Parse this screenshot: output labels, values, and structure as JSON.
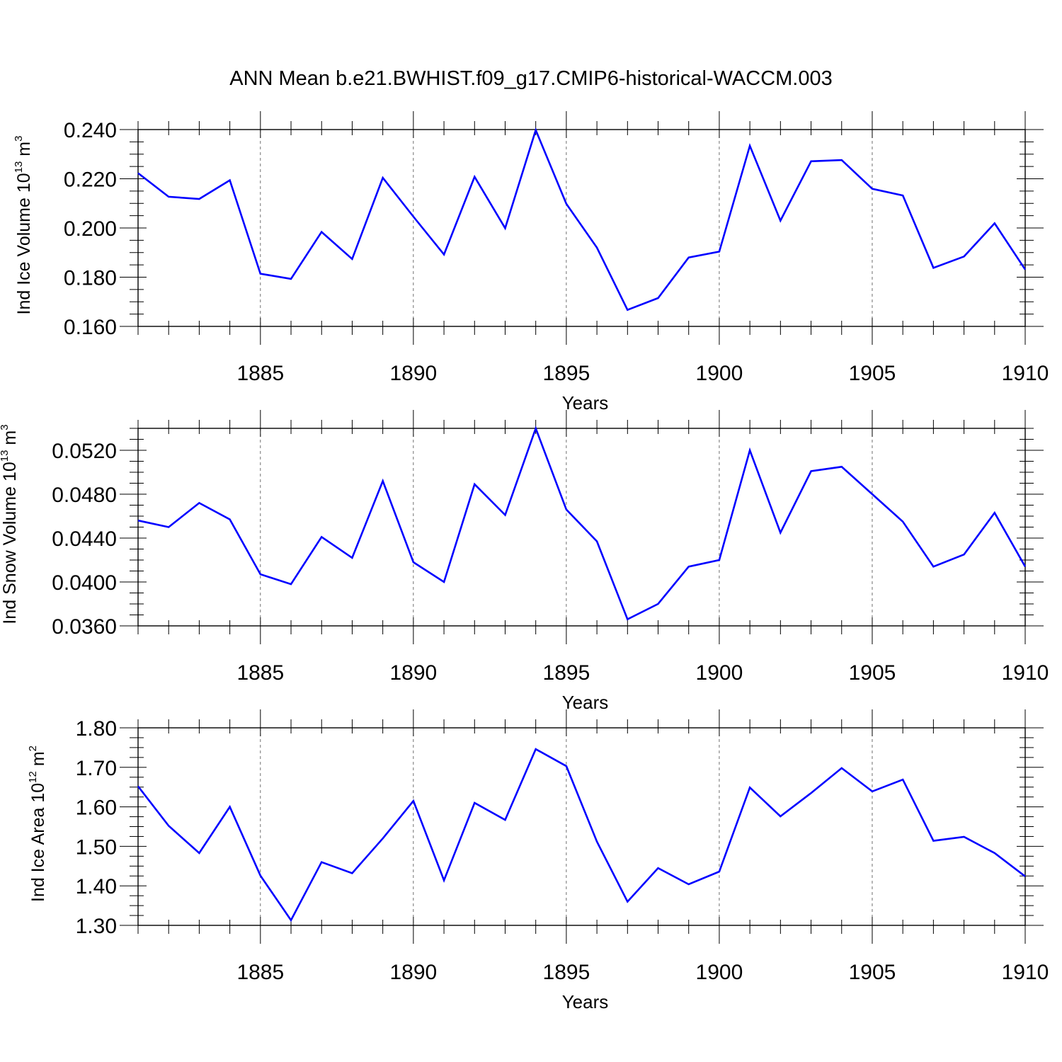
{
  "title": "ANN Mean b.e21.BWHIST.f09_g17.CMIP6-historical-WACCM.003",
  "colors": {
    "line": "#0000ff",
    "axis": "#000000",
    "grid": "#000000"
  },
  "chart_data": [
    {
      "type": "line",
      "ylabel": {
        "text": "Ind Ice Volume 10",
        "sup": "13",
        "unit": " m",
        "unit_sup": "3"
      },
      "xlabel": "Years",
      "xlim": [
        1881,
        1910
      ],
      "ylim": [
        0.16,
        0.24
      ],
      "x_tick_labels": [
        "1885",
        "1890",
        "1895",
        "1900",
        "1905",
        "1910"
      ],
      "y_tick_labels": [
        "0.160",
        "0.180",
        "0.200",
        "0.220",
        "0.240"
      ],
      "grid": "dashed vertical at major x ticks",
      "x": [
        1881,
        1882,
        1883,
        1884,
        1885,
        1886,
        1887,
        1888,
        1889,
        1890,
        1891,
        1892,
        1893,
        1894,
        1895,
        1896,
        1897,
        1898,
        1899,
        1900,
        1901,
        1902,
        1903,
        1904,
        1905,
        1906,
        1907,
        1908,
        1909,
        1910
      ],
      "series": [
        {
          "values": [
            0.2223,
            0.2127,
            0.2118,
            0.2194,
            0.1814,
            0.1793,
            0.1984,
            0.1874,
            0.2204,
            0.2046,
            0.1892,
            0.2208,
            0.1999,
            0.2398,
            0.2098,
            0.192,
            0.1667,
            0.1715,
            0.188,
            0.1904,
            0.2334,
            0.203,
            0.2271,
            0.2276,
            0.2159,
            0.2132,
            0.1838,
            0.1884,
            0.2019,
            0.1831
          ]
        }
      ]
    },
    {
      "type": "line",
      "ylabel": {
        "text": "Ind Snow Volume 10",
        "sup": "13",
        "unit": " m",
        "unit_sup": "3"
      },
      "xlabel": "Years",
      "xlim": [
        1881,
        1910
      ],
      "ylim": [
        0.036,
        0.054
      ],
      "x_tick_labels": [
        "1885",
        "1890",
        "1895",
        "1900",
        "1905",
        "1910"
      ],
      "y_tick_labels": [
        "0.0360",
        "0.0400",
        "0.0440",
        "0.0480",
        "0.0520"
      ],
      "grid": "dashed vertical at major x ticks",
      "x": [
        1881,
        1882,
        1883,
        1884,
        1885,
        1886,
        1887,
        1888,
        1889,
        1890,
        1891,
        1892,
        1893,
        1894,
        1895,
        1896,
        1897,
        1898,
        1899,
        1900,
        1901,
        1902,
        1903,
        1904,
        1905,
        1906,
        1907,
        1908,
        1909,
        1910
      ],
      "series": [
        {
          "values": [
            0.0456,
            0.045,
            0.0472,
            0.0457,
            0.0407,
            0.0398,
            0.0441,
            0.0422,
            0.0492,
            0.0418,
            0.04,
            0.0489,
            0.0461,
            0.054,
            0.0466,
            0.0437,
            0.0366,
            0.038,
            0.0414,
            0.042,
            0.052,
            0.0445,
            0.0501,
            0.0505,
            0.048,
            0.0455,
            0.0414,
            0.0425,
            0.0463,
            0.0414
          ]
        }
      ]
    },
    {
      "type": "line",
      "ylabel": {
        "text": "Ind Ice Area 10",
        "sup": "12",
        "unit": " m",
        "unit_sup": "2"
      },
      "xlabel": "Years",
      "xlim": [
        1881,
        1910
      ],
      "ylim": [
        1.3,
        1.8
      ],
      "x_tick_labels": [
        "1885",
        "1890",
        "1895",
        "1900",
        "1905",
        "1910"
      ],
      "y_tick_labels": [
        "1.30",
        "1.40",
        "1.50",
        "1.60",
        "1.70",
        "1.80"
      ],
      "grid": "dashed vertical at major x ticks",
      "x": [
        1881,
        1882,
        1883,
        1884,
        1885,
        1886,
        1887,
        1888,
        1889,
        1890,
        1891,
        1892,
        1893,
        1894,
        1895,
        1896,
        1897,
        1898,
        1899,
        1900,
        1901,
        1902,
        1903,
        1904,
        1905,
        1906,
        1907,
        1908,
        1909,
        1910
      ],
      "series": [
        {
          "values": [
            1.652,
            1.552,
            1.483,
            1.6,
            1.426,
            1.313,
            1.46,
            1.432,
            1.52,
            1.615,
            1.414,
            1.61,
            1.567,
            1.746,
            1.703,
            1.512,
            1.36,
            1.445,
            1.404,
            1.436,
            1.649,
            1.576,
            1.635,
            1.698,
            1.639,
            1.669,
            1.514,
            1.524,
            1.483,
            1.424
          ]
        }
      ]
    }
  ]
}
